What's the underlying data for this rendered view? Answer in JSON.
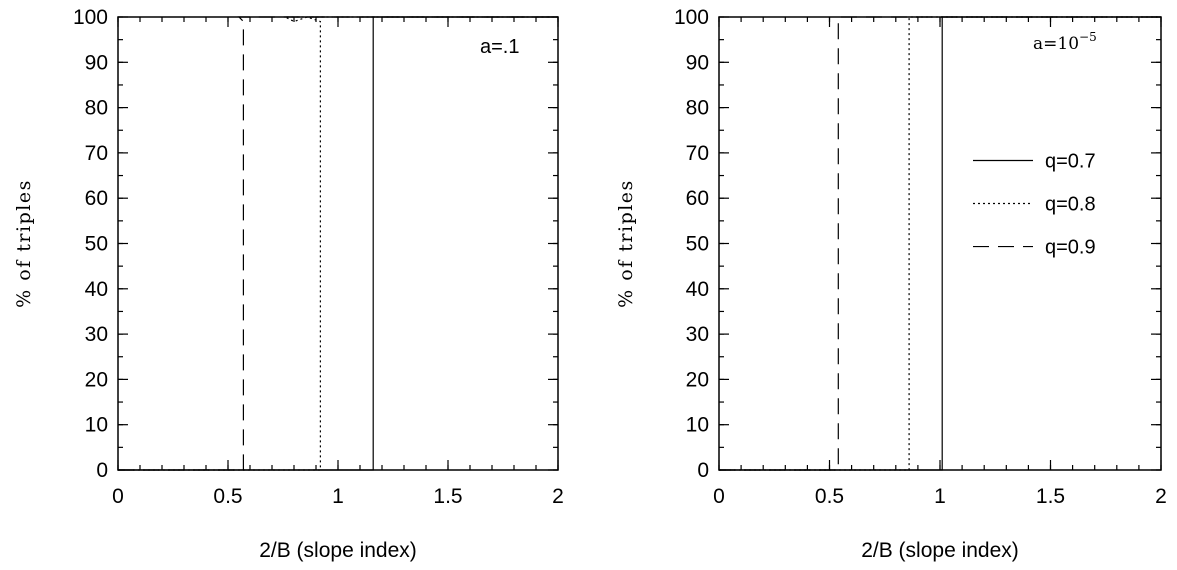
{
  "chart_data": [
    {
      "type": "line",
      "panel": "left",
      "annotation": "a=.1",
      "xlabel": "2/B (slope index)",
      "ylabel": "% of triples",
      "xlim": [
        0,
        2
      ],
      "ylim": [
        0,
        100
      ],
      "xticks": [
        "0",
        "0.5",
        "1",
        "1.5",
        "2"
      ],
      "yticks": [
        "0",
        "10",
        "20",
        "30",
        "40",
        "50",
        "60",
        "70",
        "80",
        "90",
        "100"
      ],
      "grid": false,
      "series": [
        {
          "style": "solid",
          "x": [
            0,
            1.16,
            1.16,
            1.16,
            2
          ],
          "y": [
            0,
            0,
            100,
            100,
            100
          ]
        },
        {
          "style": "dotted",
          "x": [
            0,
            0.92,
            0.92,
            0.86,
            0.8,
            0.76,
            2
          ],
          "y": [
            0,
            0,
            99,
            100,
            99,
            100,
            100
          ]
        },
        {
          "style": "dashed",
          "x": [
            0,
            0.57,
            0.57,
            0.55,
            2
          ],
          "y": [
            0,
            0,
            99,
            100,
            100
          ]
        }
      ]
    },
    {
      "type": "line",
      "panel": "right",
      "annotation": {
        "base": "a=10",
        "sup": "−5"
      },
      "xlabel": "2/B (slope index)",
      "ylabel": "% of triples",
      "xlim": [
        0,
        2
      ],
      "ylim": [
        0,
        100
      ],
      "xticks": [
        "0",
        "0.5",
        "1",
        "1.5",
        "2"
      ],
      "yticks": [
        "0",
        "10",
        "20",
        "30",
        "40",
        "50",
        "60",
        "70",
        "80",
        "90",
        "100"
      ],
      "grid": false,
      "legend_position": "right",
      "series": [
        {
          "name": "q=0.7",
          "style": "solid",
          "x": [
            0,
            1.01,
            1.01,
            2
          ],
          "y": [
            0,
            0,
            100,
            100
          ]
        },
        {
          "name": "q=0.8",
          "style": "dotted",
          "x": [
            0,
            0.86,
            0.86,
            2
          ],
          "y": [
            0,
            0,
            100,
            100
          ]
        },
        {
          "name": "q=0.9",
          "style": "dashed",
          "x": [
            0,
            0.54,
            0.54,
            2
          ],
          "y": [
            0,
            0,
            100,
            100
          ]
        }
      ]
    }
  ]
}
